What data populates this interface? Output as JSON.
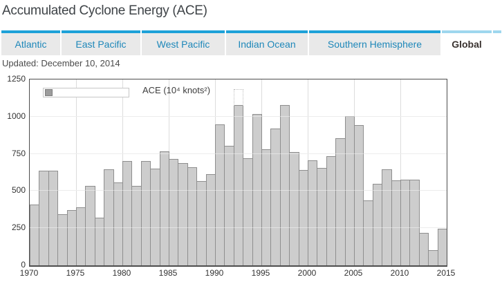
{
  "header": {
    "title": "Accumulated Cyclone Energy (ACE)"
  },
  "status": {
    "updated": "Updated: December 10, 2014"
  },
  "tabs": [
    {
      "label": "Atlantic",
      "active": false
    },
    {
      "label": "East Pacific",
      "active": false
    },
    {
      "label": "West Pacific",
      "active": false
    },
    {
      "label": "Indian Ocean",
      "active": false
    },
    {
      "label": "Southern Hemisphere",
      "active": false
    },
    {
      "label": "Global",
      "active": true
    }
  ],
  "colors": {
    "tab_top_bar": "#1da1d8",
    "tab_top_bar_active": "#9fd7ee",
    "tab_background": "#e9e9e9",
    "tab_text": "#1d87b9",
    "tab_text_active": "#3a3330",
    "bar_fill": "#cdcdcd",
    "bar_border": "#8e8e8e",
    "gridline": "#dcdcdc",
    "plot_border": "#4c4c4c",
    "dotted_outline": "#bdbdbd"
  },
  "chart_data": {
    "type": "bar",
    "legend_label": "ACE (10⁴ knots²)",
    "categories": [
      1970,
      1971,
      1972,
      1973,
      1974,
      1975,
      1976,
      1977,
      1978,
      1979,
      1980,
      1981,
      1982,
      1983,
      1984,
      1985,
      1986,
      1987,
      1988,
      1989,
      1990,
      1991,
      1992,
      1993,
      1994,
      1995,
      1996,
      1997,
      1998,
      1999,
      2000,
      2001,
      2002,
      2003,
      2004,
      2005,
      2006,
      2007,
      2008,
      2009,
      2010,
      2011,
      2012,
      2013,
      2014
    ],
    "values": [
      410,
      635,
      635,
      345,
      370,
      390,
      535,
      320,
      645,
      560,
      700,
      535,
      700,
      650,
      765,
      715,
      690,
      660,
      565,
      615,
      950,
      805,
      1080,
      720,
      1020,
      780,
      920,
      1080,
      760,
      640,
      705,
      655,
      735,
      855,
      1005,
      945,
      435,
      550,
      645,
      570,
      575,
      575,
      220,
      100,
      245
    ],
    "dotted_overlay": {
      "year": 1992,
      "value_from": 1080,
      "value_to": 1190
    },
    "ylim": [
      0,
      1250
    ],
    "yticks": [
      0,
      250,
      500,
      750,
      1000,
      1250
    ],
    "xticks": [
      1970,
      1975,
      1980,
      1985,
      1990,
      1995,
      2000,
      2005,
      2010,
      2015
    ],
    "grid": true,
    "legend_position": "top-left",
    "xlabel": "",
    "ylabel": ""
  }
}
